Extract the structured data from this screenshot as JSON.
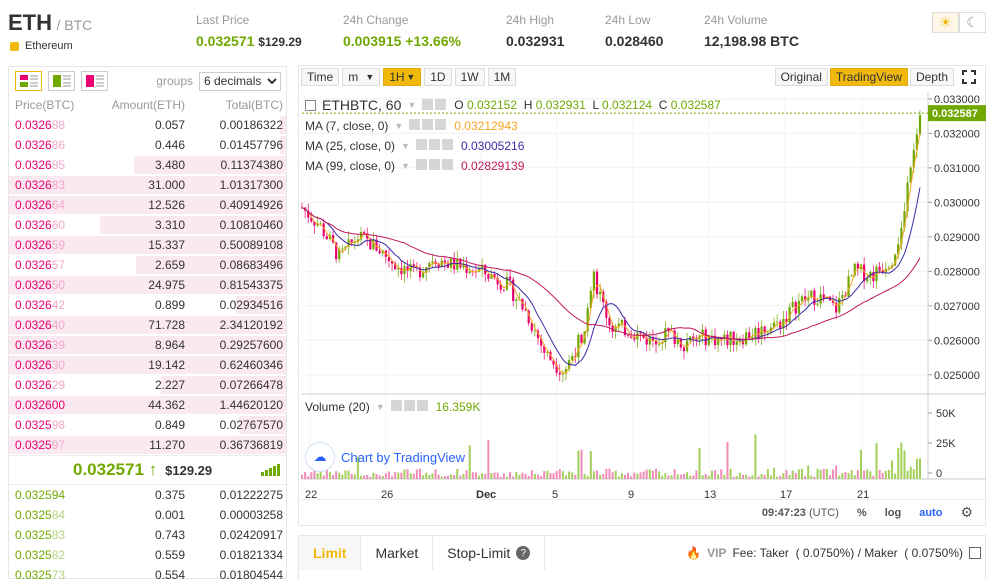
{
  "header": {
    "base": "ETH",
    "quote": "/ BTC",
    "coin_name": "Ethereum",
    "last_price": {
      "label": "Last Price",
      "value": "0.032571",
      "usd": "$129.29"
    },
    "change": {
      "label": "24h Change",
      "value": "0.003915",
      "pct": "+13.66%"
    },
    "high": {
      "label": "24h High",
      "value": "0.032931"
    },
    "low": {
      "label": "24h Low",
      "value": "0.028460"
    },
    "volume": {
      "label": "24h Volume",
      "value": "12,198.98 BTC"
    }
  },
  "orderbook": {
    "groups_label": "groups",
    "decimals": "6 decimals",
    "headers": [
      "Price(BTC)",
      "Amount(ETH)",
      "Total(BTC)"
    ],
    "asks": [
      {
        "p1": "0.0326",
        "p2": "88",
        "amount": "0.057",
        "total": "0.00186322",
        "depth": 0.02
      },
      {
        "p1": "0.0326",
        "p2": "86",
        "amount": "0.446",
        "total": "0.01457796",
        "depth": 0.02
      },
      {
        "p1": "0.0326",
        "p2": "85",
        "amount": "3.480",
        "total": "0.11374380",
        "depth": 0.55
      },
      {
        "p1": "0.0326",
        "p2": "83",
        "amount": "31.000",
        "total": "1.01317300",
        "depth": 1.0
      },
      {
        "p1": "0.0326",
        "p2": "64",
        "amount": "12.526",
        "total": "0.40914926",
        "depth": 1.0
      },
      {
        "p1": "0.0326",
        "p2": "60",
        "amount": "3.310",
        "total": "0.10810460",
        "depth": 0.67
      },
      {
        "p1": "0.0326",
        "p2": "59",
        "amount": "15.337",
        "total": "0.50089108",
        "depth": 1.0
      },
      {
        "p1": "0.0326",
        "p2": "57",
        "amount": "2.659",
        "total": "0.08683496",
        "depth": 0.54
      },
      {
        "p1": "0.0326",
        "p2": "50",
        "amount": "24.975",
        "total": "0.81543375",
        "depth": 1.0
      },
      {
        "p1": "0.0326",
        "p2": "42",
        "amount": "0.899",
        "total": "0.02934516",
        "depth": 0.18
      },
      {
        "p1": "0.0326",
        "p2": "40",
        "amount": "71.728",
        "total": "2.34120192",
        "depth": 1.0
      },
      {
        "p1": "0.0326",
        "p2": "39",
        "amount": "8.964",
        "total": "0.29257600",
        "depth": 1.0
      },
      {
        "p1": "0.0326",
        "p2": "30",
        "amount": "19.142",
        "total": "0.62460346",
        "depth": 1.0
      },
      {
        "p1": "0.0326",
        "p2": "29",
        "amount": "2.227",
        "total": "0.07266478",
        "depth": 0.45
      },
      {
        "p1": "0.032600",
        "p2": "",
        "amount": "44.362",
        "total": "1.44620120",
        "depth": 1.0
      },
      {
        "p1": "0.0325",
        "p2": "98",
        "amount": "0.849",
        "total": "0.02767570",
        "depth": 0.17
      },
      {
        "p1": "0.0325",
        "p2": "97",
        "amount": "11.270",
        "total": "0.36736819",
        "depth": 1.0
      }
    ],
    "last_price": "0.032571",
    "last_arrow": "↑",
    "last_usd": "$129.29",
    "bids": [
      {
        "p1": "0.032594",
        "p2": "",
        "amount": "0.375",
        "total": "0.01222275"
      },
      {
        "p1": "0.0325",
        "p2": "84",
        "amount": "0.001",
        "total": "0.00003258"
      },
      {
        "p1": "0.0325",
        "p2": "83",
        "amount": "0.743",
        "total": "0.02420917"
      },
      {
        "p1": "0.0325",
        "p2": "82",
        "amount": "0.559",
        "total": "0.01821334"
      },
      {
        "p1": "0.0325",
        "p2": "73",
        "amount": "0.554",
        "total": "0.01804544"
      }
    ]
  },
  "chart_toolbar": {
    "time": "Time",
    "interval_unit": "m",
    "interval_active": "1H",
    "intervals": [
      "1D",
      "1W",
      "1M"
    ],
    "views": [
      "Original",
      "TradingView",
      "Depth"
    ],
    "active_view": "TradingView"
  },
  "chart_legend": {
    "symbol": "ETHBTC, 60",
    "o_label": "O",
    "o": "0.032152",
    "h_label": "H",
    "h": "0.032931",
    "l_label": "L",
    "l": "0.032124",
    "c_label": "C",
    "c": "0.032587",
    "ma": [
      {
        "name": "MA (7, close, 0)",
        "value": "0.03212943",
        "color": "#f5a623"
      },
      {
        "name": "MA (25, close, 0)",
        "value": "0.03005216",
        "color": "#3a2ca8"
      },
      {
        "name": "MA (99, close, 0)",
        "value": "0.02829139",
        "color": "#c2185b"
      }
    ],
    "volume_name": "Volume (20)",
    "volume_value": "16.359K",
    "watermark": "Chart by TradingView"
  },
  "chart_data": {
    "type": "candlestick",
    "y_ticks": [
      "0.033000",
      "0.032000",
      "0.031000",
      "0.030000",
      "0.029000",
      "0.028000",
      "0.027000",
      "0.026000",
      "0.025000"
    ],
    "ylim": [
      0.0245,
      0.0332
    ],
    "price_label": "0.032587",
    "x_ticks": [
      "22",
      "26",
      "Dec",
      "5",
      "9",
      "13",
      "17",
      "21"
    ],
    "volume_ticks": [
      "50K",
      "25K",
      "0"
    ],
    "close_path": [
      {
        "t": 0,
        "v": 0.02985
      },
      {
        "t": 2,
        "v": 0.0293
      },
      {
        "t": 4,
        "v": 0.0284
      },
      {
        "t": 6,
        "v": 0.029
      },
      {
        "t": 8,
        "v": 0.0287
      },
      {
        "t": 10,
        "v": 0.0282
      },
      {
        "t": 12,
        "v": 0.0279
      },
      {
        "t": 14,
        "v": 0.0284
      },
      {
        "t": 16,
        "v": 0.0282
      },
      {
        "t": 18,
        "v": 0.0281
      },
      {
        "t": 20,
        "v": 0.0279
      },
      {
        "t": 22,
        "v": 0.0276
      },
      {
        "t": 24,
        "v": 0.0268
      },
      {
        "t": 26,
        "v": 0.0256
      },
      {
        "t": 28,
        "v": 0.0251
      },
      {
        "t": 30,
        "v": 0.0262
      },
      {
        "t": 31,
        "v": 0.0279
      },
      {
        "t": 33,
        "v": 0.0264
      },
      {
        "t": 35,
        "v": 0.0263
      },
      {
        "t": 37,
        "v": 0.026
      },
      {
        "t": 39,
        "v": 0.0262
      },
      {
        "t": 41,
        "v": 0.0259
      },
      {
        "t": 43,
        "v": 0.0261
      },
      {
        "t": 45,
        "v": 0.026
      },
      {
        "t": 47,
        "v": 0.0261
      },
      {
        "t": 49,
        "v": 0.0263
      },
      {
        "t": 51,
        "v": 0.0265
      },
      {
        "t": 53,
        "v": 0.0271
      },
      {
        "t": 55,
        "v": 0.0273
      },
      {
        "t": 57,
        "v": 0.0269
      },
      {
        "t": 59,
        "v": 0.028
      },
      {
        "t": 61,
        "v": 0.0279
      },
      {
        "t": 63,
        "v": 0.0284
      },
      {
        "t": 64,
        "v": 0.0292
      },
      {
        "t": 65,
        "v": 0.0312
      },
      {
        "t": 66,
        "v": 0.03259
      }
    ],
    "xlim": [
      0,
      66
    ],
    "grid": true
  },
  "chart_footer": {
    "time": "09:47:23",
    "tz": "(UTC)",
    "pct": "%",
    "log": "log",
    "auto": "auto"
  },
  "trade": {
    "tabs": [
      "Limit",
      "Market",
      "Stop-Limit"
    ],
    "vip": "VIP",
    "fee": "Fee: Taker  ( 0.0750%) / Maker  ( 0.0750%)"
  },
  "colors": {
    "accent": "#f0b90b",
    "up": "#70a800",
    "down": "#ea0070"
  }
}
